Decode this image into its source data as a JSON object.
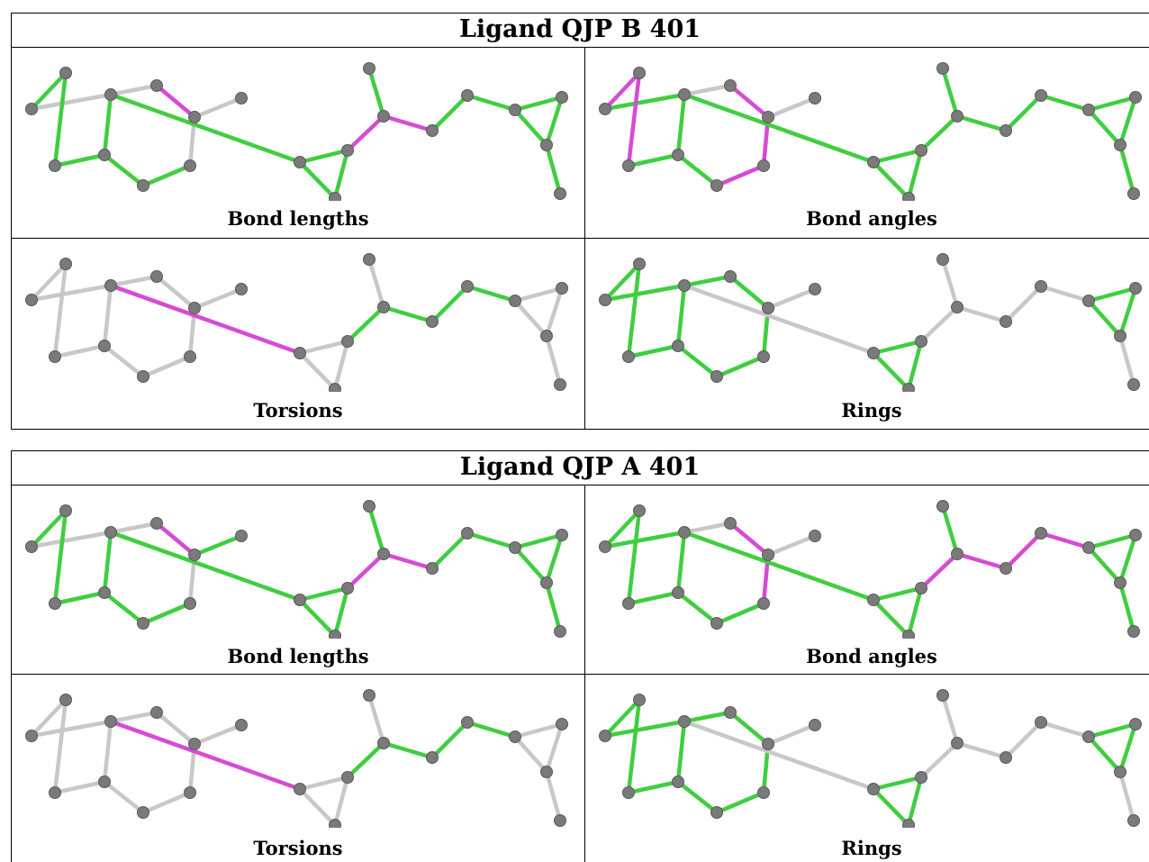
{
  "colors": {
    "pass": "#3fce3f",
    "outlier": "#d64bd6",
    "neutral": "#c8c8c8",
    "atom": "#7a7a7a"
  },
  "blocks": [
    {
      "title": "Ligand QJP B 401",
      "panels": [
        {
          "caption": "Bond lengths",
          "bonds": {
            "0-1": "g",
            "1-2": "n",
            "2-4": "g",
            "4-3": "g",
            "3-0": "g",
            "2-5": "n",
            "5-6": "m",
            "6-7": "n",
            "6-8": "n",
            "8-9": "g",
            "9-4": "g",
            "2-10": "g",
            "10-11": "g",
            "10-12": "g",
            "11-12": "g",
            "11-13": "m",
            "13-14": "g",
            "13-15": "m",
            "15-16": "g",
            "16-17": "g",
            "17-18": "g",
            "17-19": "g",
            "18-19": "g",
            "19-20": "g"
          }
        },
        {
          "caption": "Bond angles",
          "bonds": {
            "0-1": "m",
            "1-2": "g",
            "2-4": "g",
            "4-3": "g",
            "3-0": "m",
            "2-5": "n",
            "5-6": "m",
            "6-7": "n",
            "6-8": "m",
            "8-9": "m",
            "9-4": "g",
            "2-10": "g",
            "10-11": "g",
            "10-12": "g",
            "11-12": "g",
            "11-13": "g",
            "13-14": "g",
            "13-15": "g",
            "15-16": "g",
            "16-17": "g",
            "17-18": "g",
            "17-19": "g",
            "18-19": "g",
            "19-20": "g"
          }
        },
        {
          "caption": "Torsions",
          "bonds": {
            "0-1": "n",
            "1-2": "n",
            "2-4": "n",
            "4-3": "n",
            "3-0": "n",
            "2-5": "n",
            "5-6": "n",
            "6-7": "n",
            "6-8": "n",
            "8-9": "n",
            "9-4": "n",
            "2-10": "m",
            "10-11": "n",
            "10-12": "n",
            "11-12": "n",
            "11-13": "g",
            "13-14": "n",
            "13-15": "g",
            "15-16": "g",
            "16-17": "g",
            "17-18": "n",
            "17-19": "n",
            "18-19": "n",
            "19-20": "n"
          }
        },
        {
          "caption": "Rings",
          "bonds": {
            "0-1": "g",
            "1-2": "g",
            "2-4": "g",
            "4-3": "g",
            "3-0": "g",
            "2-5": "g",
            "5-6": "g",
            "6-7": "n",
            "6-8": "g",
            "8-9": "g",
            "9-4": "g",
            "2-10": "n",
            "10-11": "g",
            "10-12": "g",
            "11-12": "g",
            "11-13": "n",
            "13-14": "n",
            "13-15": "n",
            "15-16": "n",
            "16-17": "n",
            "17-18": "g",
            "17-19": "g",
            "18-19": "g",
            "19-20": "n"
          }
        }
      ]
    },
    {
      "title": "Ligand QJP A 401",
      "panels": [
        {
          "caption": "Bond lengths",
          "bonds": {
            "0-1": "g",
            "1-2": "n",
            "2-4": "g",
            "4-3": "g",
            "3-0": "g",
            "2-5": "n",
            "5-6": "m",
            "6-7": "g",
            "6-8": "n",
            "8-9": "g",
            "9-4": "g",
            "2-10": "g",
            "10-11": "g",
            "10-12": "g",
            "11-12": "g",
            "11-13": "m",
            "13-14": "g",
            "13-15": "m",
            "15-16": "g",
            "16-17": "g",
            "17-18": "g",
            "17-19": "g",
            "18-19": "g",
            "19-20": "g"
          }
        },
        {
          "caption": "Bond angles",
          "bonds": {
            "0-1": "g",
            "1-2": "g",
            "2-4": "g",
            "4-3": "g",
            "3-0": "g",
            "2-5": "n",
            "5-6": "m",
            "6-7": "n",
            "6-8": "m",
            "8-9": "g",
            "9-4": "g",
            "2-10": "g",
            "10-11": "g",
            "10-12": "g",
            "11-12": "g",
            "11-13": "m",
            "13-14": "g",
            "13-15": "m",
            "15-16": "m",
            "16-17": "m",
            "17-18": "g",
            "17-19": "g",
            "18-19": "g",
            "19-20": "g"
          }
        },
        {
          "caption": "Torsions",
          "bonds": {
            "0-1": "n",
            "1-2": "n",
            "2-4": "n",
            "4-3": "n",
            "3-0": "n",
            "2-5": "n",
            "5-6": "n",
            "6-7": "n",
            "6-8": "n",
            "8-9": "n",
            "9-4": "n",
            "2-10": "m",
            "10-11": "n",
            "10-12": "n",
            "11-12": "n",
            "11-13": "g",
            "13-14": "n",
            "13-15": "g",
            "15-16": "g",
            "16-17": "g",
            "17-18": "n",
            "17-19": "n",
            "18-19": "n",
            "19-20": "n"
          }
        },
        {
          "caption": "Rings",
          "bonds": {
            "0-1": "g",
            "1-2": "g",
            "2-4": "g",
            "4-3": "g",
            "3-0": "g",
            "2-5": "g",
            "5-6": "g",
            "6-7": "n",
            "6-8": "g",
            "8-9": "g",
            "9-4": "g",
            "2-10": "n",
            "10-11": "g",
            "10-12": "g",
            "11-12": "g",
            "11-13": "n",
            "13-14": "n",
            "13-15": "n",
            "15-16": "n",
            "16-17": "n",
            "17-18": "g",
            "17-19": "g",
            "18-19": "g",
            "19-20": "n"
          }
        }
      ]
    }
  ]
}
